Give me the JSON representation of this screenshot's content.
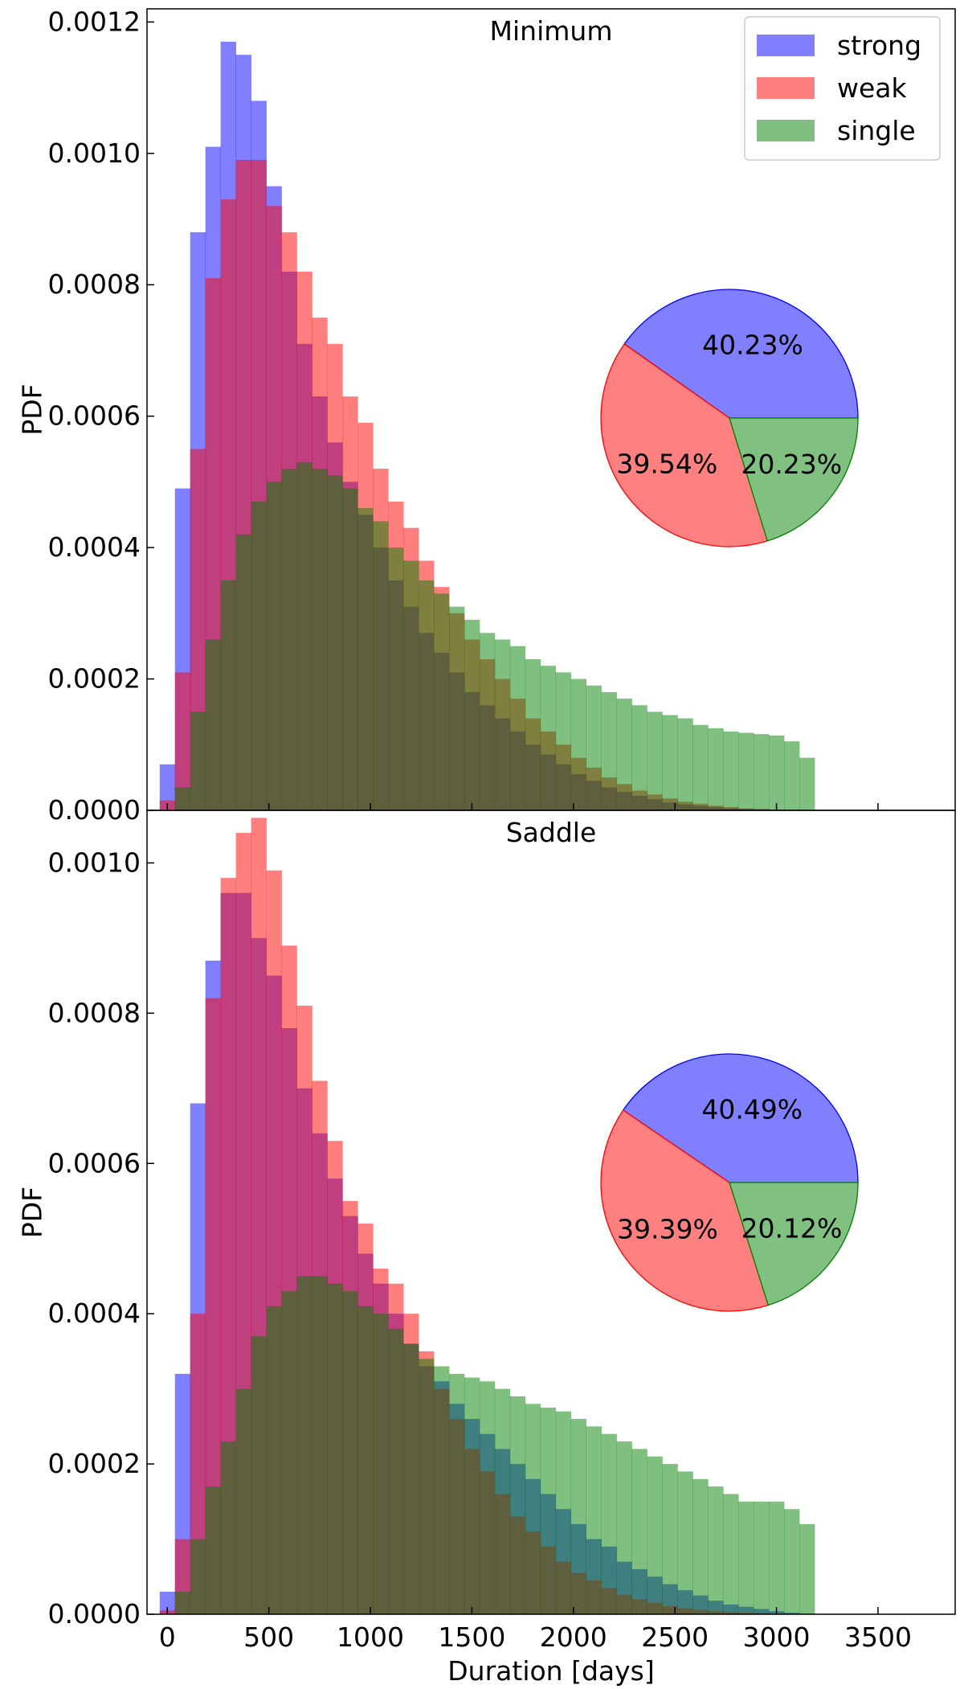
{
  "chart_data": [
    {
      "type": "histogram",
      "title": "Minimum",
      "xlabel": "",
      "ylabel": "PDF",
      "xlim": [
        -100,
        3880
      ],
      "ylim": [
        0,
        0.00122
      ],
      "yticks": [
        "0.0000",
        "0.0002",
        "0.0004",
        "0.0006",
        "0.0008",
        "0.0010",
        "0.0012"
      ],
      "ytick_values": [
        0,
        0.0002,
        0.0004,
        0.0006,
        0.0008,
        0.001,
        0.0012
      ],
      "xtick_values": [
        0,
        500,
        1000,
        1500,
        2000,
        2500,
        3000,
        3500
      ],
      "bin_width": 75,
      "series": [
        {
          "name": "strong",
          "color": "#0000ff",
          "opacity": 0.5,
          "start": -37.5,
          "values": [
            7e-05,
            0.00049,
            0.00088,
            0.00101,
            0.00117,
            0.00115,
            0.00108,
            0.00095,
            0.00082,
            0.00071,
            0.00063,
            0.00056,
            0.0005,
            0.00045,
            0.0004,
            0.00035,
            0.00031,
            0.00027,
            0.00024,
            0.00021,
            0.00018,
            0.00016,
            0.00014,
            0.00012,
            0.0001,
            8.5e-05,
            7e-05,
            5.5e-05,
            4.5e-05,
            3.5e-05,
            2.8e-05,
            2.2e-05,
            1.7e-05,
            1.2e-05,
            9e-06,
            7e-06,
            5e-06,
            3e-06,
            2e-06,
            1.5e-06,
            1e-06,
            5e-07,
            2e-07
          ]
        },
        {
          "name": "weak",
          "color": "#ff0000",
          "opacity": 0.5,
          "start": -37.5,
          "values": [
            1.5e-05,
            0.00021,
            0.00055,
            0.00081,
            0.00093,
            0.00099,
            0.00099,
            0.00092,
            0.00088,
            0.00082,
            0.00075,
            0.00071,
            0.00063,
            0.00059,
            0.00052,
            0.00047,
            0.00043,
            0.00038,
            0.00034,
            0.0003,
            0.00026,
            0.00023,
            0.0002,
            0.00017,
            0.00014,
            0.00012,
            0.0001,
            8e-05,
            6.5e-05,
            5e-05,
            4e-05,
            3e-05,
            2.4e-05,
            1.8e-05,
            1.3e-05,
            1e-05,
            7e-06,
            5e-06,
            3e-06,
            2e-06,
            1e-06,
            5e-07,
            2e-07
          ]
        },
        {
          "name": "single",
          "color": "#008000",
          "opacity": 0.5,
          "start": 37.5,
          "values": [
            3.5e-05,
            0.00015,
            0.00026,
            0.00035,
            0.00042,
            0.00047,
            0.0005,
            0.00052,
            0.00053,
            0.00052,
            0.00051,
            0.00049,
            0.00046,
            0.00044,
            0.0004,
            0.00038,
            0.00035,
            0.00033,
            0.00031,
            0.00029,
            0.00027,
            0.00026,
            0.00025,
            0.00023,
            0.00022,
            0.00021,
            0.0002,
            0.00019,
            0.00018,
            0.00017,
            0.00016,
            0.00015,
            0.000145,
            0.00014,
            0.00013,
            0.000125,
            0.00012,
            0.000118,
            0.000116,
            0.000114,
            0.000105,
            8e-05
          ]
        }
      ],
      "legend": {
        "position": "top-right",
        "entries": [
          "strong",
          "weak",
          "single"
        ]
      },
      "inset_pie": {
        "slices": [
          {
            "name": "strong",
            "label": "40.23%",
            "value": 40.23,
            "color": "#8080ff",
            "edge": "#0000ff"
          },
          {
            "name": "weak",
            "label": "39.54%",
            "value": 39.54,
            "color": "#ff8080",
            "edge": "#ff0000"
          },
          {
            "name": "single",
            "label": "20.23%",
            "value": 20.23,
            "color": "#80c080",
            "edge": "#008000"
          }
        ]
      }
    },
    {
      "type": "histogram",
      "title": "Saddle",
      "xlabel": "Duration [days]",
      "ylabel": "PDF",
      "xlim": [
        -100,
        3880
      ],
      "ylim": [
        0,
        0.00107
      ],
      "yticks": [
        "0.0000",
        "0.0002",
        "0.0004",
        "0.0006",
        "0.0008",
        "0.0010"
      ],
      "ytick_values": [
        0,
        0.0002,
        0.0004,
        0.0006,
        0.0008,
        0.001
      ],
      "xticks": [
        "0",
        "500",
        "1000",
        "1500",
        "2000",
        "2500",
        "3000",
        "3500"
      ],
      "xtick_values": [
        0,
        500,
        1000,
        1500,
        2000,
        2500,
        3000,
        3500
      ],
      "bin_width": 75,
      "series": [
        {
          "name": "strong",
          "color": "#0000ff",
          "opacity": 0.5,
          "start": -37.5,
          "values": [
            3e-05,
            0.00032,
            0.00068,
            0.00087,
            0.00096,
            0.00096,
            0.0009,
            0.00085,
            0.00078,
            0.0007,
            0.00064,
            0.00058,
            0.00053,
            0.00048,
            0.00044,
            0.0004,
            0.00036,
            0.00033,
            0.00031,
            0.00028,
            0.00026,
            0.00024,
            0.00022,
            0.0002,
            0.00018,
            0.00016,
            0.00014,
            0.00012,
            0.0001,
            9e-05,
            7e-05,
            6e-05,
            5e-05,
            4e-05,
            3.2e-05,
            2.5e-05,
            1.8e-05,
            1.3e-05,
            1e-05,
            7e-06,
            4e-06,
            2e-06,
            1e-06,
            5e-07
          ]
        },
        {
          "name": "weak",
          "color": "#ff0000",
          "opacity": 0.5,
          "start": -37.5,
          "values": [
            5e-06,
            0.0001,
            0.0004,
            0.00082,
            0.00098,
            0.00104,
            0.00106,
            0.00099,
            0.00089,
            0.00081,
            0.00071,
            0.00063,
            0.00055,
            0.00052,
            0.00046,
            0.00044,
            0.0004,
            0.00035,
            0.0003,
            0.00026,
            0.00022,
            0.00019,
            0.00016,
            0.00013,
            0.00011,
            9e-05,
            7e-05,
            5.5e-05,
            4.5e-05,
            3.5e-05,
            2.6e-05,
            2e-05,
            1.5e-05,
            1.1e-05,
            8e-06,
            6e-06,
            4e-06,
            3e-06,
            2e-06,
            1.5e-06,
            1e-06,
            5e-07,
            2e-07,
            1e-07
          ]
        },
        {
          "name": "single",
          "color": "#008000",
          "opacity": 0.5,
          "start": 37.5,
          "values": [
            3e-05,
            0.0001,
            0.00017,
            0.00023,
            0.0003,
            0.00037,
            0.00041,
            0.00043,
            0.00045,
            0.00045,
            0.00044,
            0.00043,
            0.00041,
            0.0004,
            0.00038,
            0.00036,
            0.00034,
            0.00033,
            0.00032,
            0.000315,
            0.00031,
            0.0003,
            0.00029,
            0.00028,
            0.000275,
            0.00027,
            0.00026,
            0.00025,
            0.00024,
            0.00023,
            0.00022,
            0.00021,
            0.0002,
            0.00019,
            0.00018,
            0.00017,
            0.00016,
            0.00015,
            0.00015,
            0.00015,
            0.00014,
            0.00012
          ]
        }
      ],
      "inset_pie": {
        "slices": [
          {
            "name": "strong",
            "label": "40.49%",
            "value": 40.49,
            "color": "#8080ff",
            "edge": "#0000ff"
          },
          {
            "name": "weak",
            "label": "39.39%",
            "value": 39.39,
            "color": "#ff8080",
            "edge": "#ff0000"
          },
          {
            "name": "single",
            "label": "20.12%",
            "value": 20.12,
            "color": "#80c080",
            "edge": "#008000"
          }
        ]
      }
    }
  ]
}
